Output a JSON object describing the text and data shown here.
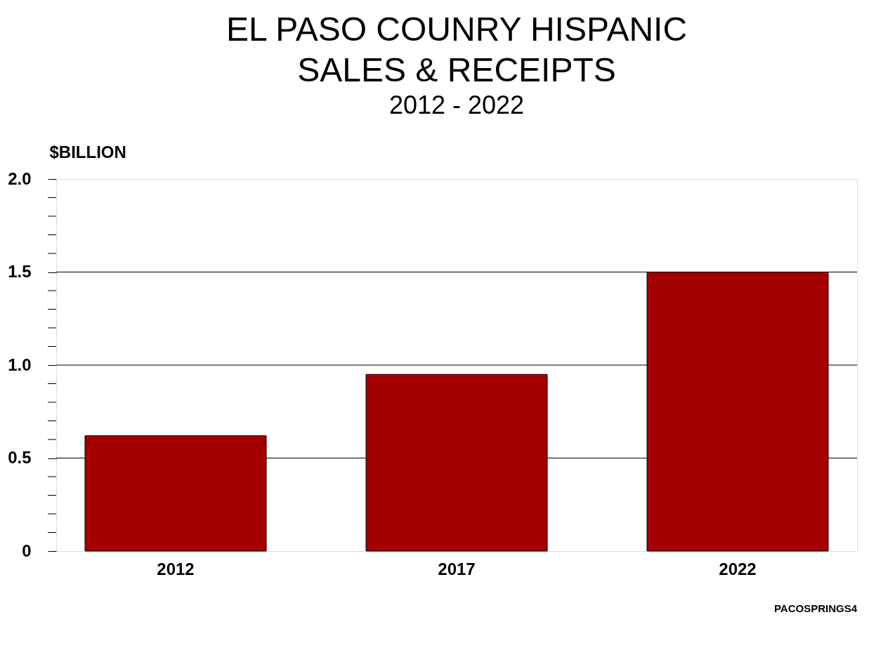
{
  "chart_data": {
    "type": "bar",
    "title": [
      "EL PASO COUNRY HISPANIC",
      "SALES & RECEIPTS"
    ],
    "subtitle": "2012 - 2022",
    "ylabel": "$BILLION",
    "categories": [
      "2012",
      "2017",
      "2022"
    ],
    "values": [
      0.62,
      0.95,
      1.5
    ],
    "color": "#a50000",
    "ylim": [
      0,
      2
    ],
    "yticks": [
      0,
      {
        "value": 0.1,
        "label": null
      },
      {
        "value": 0.2,
        "label": null
      },
      {
        "value": 0.3,
        "label": null
      },
      {
        "value": 0.4,
        "label": null
      },
      0.5,
      {
        "value": 0.6,
        "label": null
      },
      {
        "value": 0.7,
        "label": null
      },
      {
        "value": 0.8,
        "label": null
      },
      {
        "value": 0.9,
        "label": null
      },
      {
        "value": 1,
        "label": "1.0"
      },
      {
        "value": 1.1,
        "label": null
      },
      {
        "value": 1.2,
        "label": null
      },
      {
        "value": 1.3,
        "label": null
      },
      {
        "value": 1.4,
        "label": null
      },
      1.5,
      {
        "value": 1.6,
        "label": null
      },
      {
        "value": 1.7,
        "label": null
      },
      {
        "value": 1.8,
        "label": null
      },
      {
        "value": 1.9,
        "label": null
      },
      {
        "value": 2,
        "label": "2.0"
      }
    ],
    "grid": "y",
    "annotations": [
      "PACOSPRINGS4"
    ]
  }
}
